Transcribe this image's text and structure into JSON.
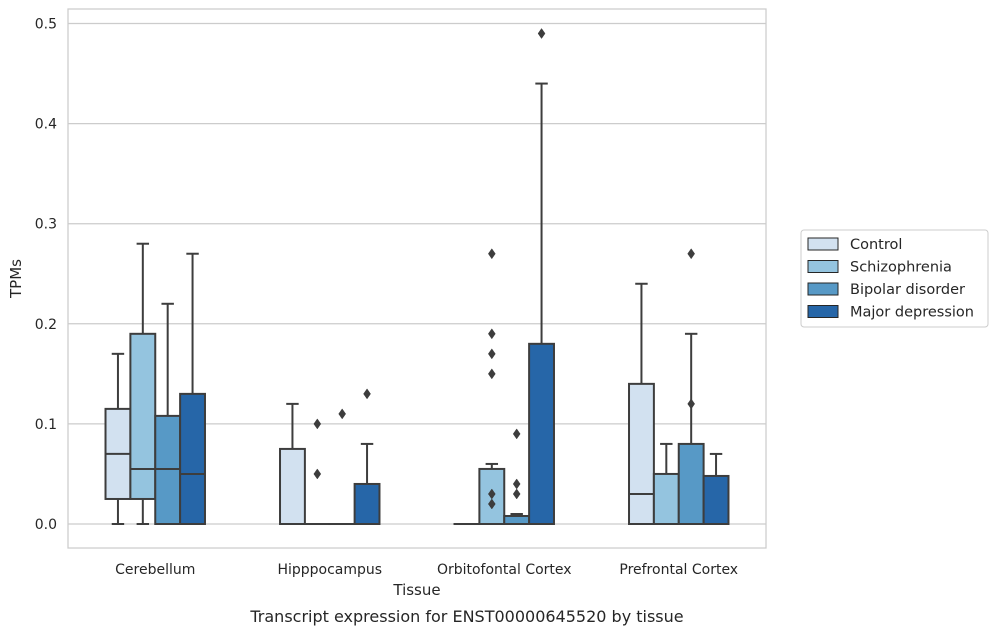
{
  "chart_data": {
    "type": "box",
    "caption": "Transcript expression for ENST00000645520 by tissue",
    "xlabel": "Tissue",
    "ylabel": "TPMs",
    "ylim": [
      -0.023,
      0.515
    ],
    "yticks": [
      0.0,
      0.1,
      0.2,
      0.3,
      0.4,
      0.5
    ],
    "ytick_labels": [
      "0.0",
      "0.1",
      "0.2",
      "0.3",
      "0.4",
      "0.5"
    ],
    "grid": true,
    "legend_position": "right",
    "categories": [
      "Cerebellum",
      "Hipppocampus",
      "Orbitofontal Cortex",
      "Prefrontal Cortex"
    ],
    "series": [
      {
        "name": "Control",
        "color": "#d2e1f0",
        "boxes": [
          {
            "whisker_low": 0.0,
            "q1": 0.025,
            "median": 0.07,
            "q3": 0.115,
            "whisker_high": 0.17,
            "outliers": []
          },
          {
            "whisker_low": 0.0,
            "q1": 0.0,
            "median": 0.0,
            "q3": 0.075,
            "whisker_high": 0.12,
            "outliers": []
          },
          {
            "whisker_low": 0.0,
            "q1": 0.0,
            "median": 0.0,
            "q3": 0.0,
            "whisker_high": 0.0,
            "outliers": []
          },
          {
            "whisker_low": 0.0,
            "q1": 0.0,
            "median": 0.03,
            "q3": 0.14,
            "whisker_high": 0.24,
            "outliers": []
          }
        ]
      },
      {
        "name": "Schizophrenia",
        "color": "#94c4df",
        "boxes": [
          {
            "whisker_low": 0.0,
            "q1": 0.025,
            "median": 0.055,
            "q3": 0.19,
            "whisker_high": 0.28,
            "outliers": []
          },
          {
            "whisker_low": 0.0,
            "q1": 0.0,
            "median": 0.0,
            "q3": 0.0,
            "whisker_high": 0.0,
            "outliers": [
              0.05,
              0.1
            ]
          },
          {
            "whisker_low": 0.0,
            "q1": 0.0,
            "median": 0.0,
            "q3": 0.055,
            "whisker_high": 0.06,
            "outliers": [
              0.02,
              0.03,
              0.15,
              0.17,
              0.19,
              0.27
            ]
          },
          {
            "whisker_low": 0.0,
            "q1": 0.0,
            "median": 0.0,
            "q3": 0.05,
            "whisker_high": 0.08,
            "outliers": []
          }
        ]
      },
      {
        "name": "Bipolar disorder",
        "color": "#5799c6",
        "boxes": [
          {
            "whisker_low": 0.0,
            "q1": 0.0,
            "median": 0.055,
            "q3": 0.108,
            "whisker_high": 0.22,
            "outliers": []
          },
          {
            "whisker_low": 0.0,
            "q1": 0.0,
            "median": 0.0,
            "q3": 0.0,
            "whisker_high": 0.0,
            "outliers": [
              0.11
            ]
          },
          {
            "whisker_low": 0.0,
            "q1": 0.0,
            "median": 0.0,
            "q3": 0.008,
            "whisker_high": 0.01,
            "outliers": [
              0.03,
              0.04,
              0.09
            ]
          },
          {
            "whisker_low": 0.0,
            "q1": 0.0,
            "median": 0.0,
            "q3": 0.08,
            "whisker_high": 0.19,
            "outliers": [
              0.12,
              0.27
            ]
          }
        ]
      },
      {
        "name": "Major depression",
        "color": "#2666a8",
        "boxes": [
          {
            "whisker_low": 0.0,
            "q1": 0.0,
            "median": 0.05,
            "q3": 0.13,
            "whisker_high": 0.27,
            "outliers": []
          },
          {
            "whisker_low": 0.0,
            "q1": 0.0,
            "median": 0.0,
            "q3": 0.04,
            "whisker_high": 0.08,
            "outliers": [
              0.13
            ]
          },
          {
            "whisker_low": 0.0,
            "q1": 0.0,
            "median": 0.0,
            "q3": 0.18,
            "whisker_high": 0.44,
            "outliers": [
              0.49
            ]
          },
          {
            "whisker_low": 0.0,
            "q1": 0.0,
            "median": 0.0,
            "q3": 0.048,
            "whisker_high": 0.07,
            "outliers": []
          }
        ]
      }
    ]
  }
}
